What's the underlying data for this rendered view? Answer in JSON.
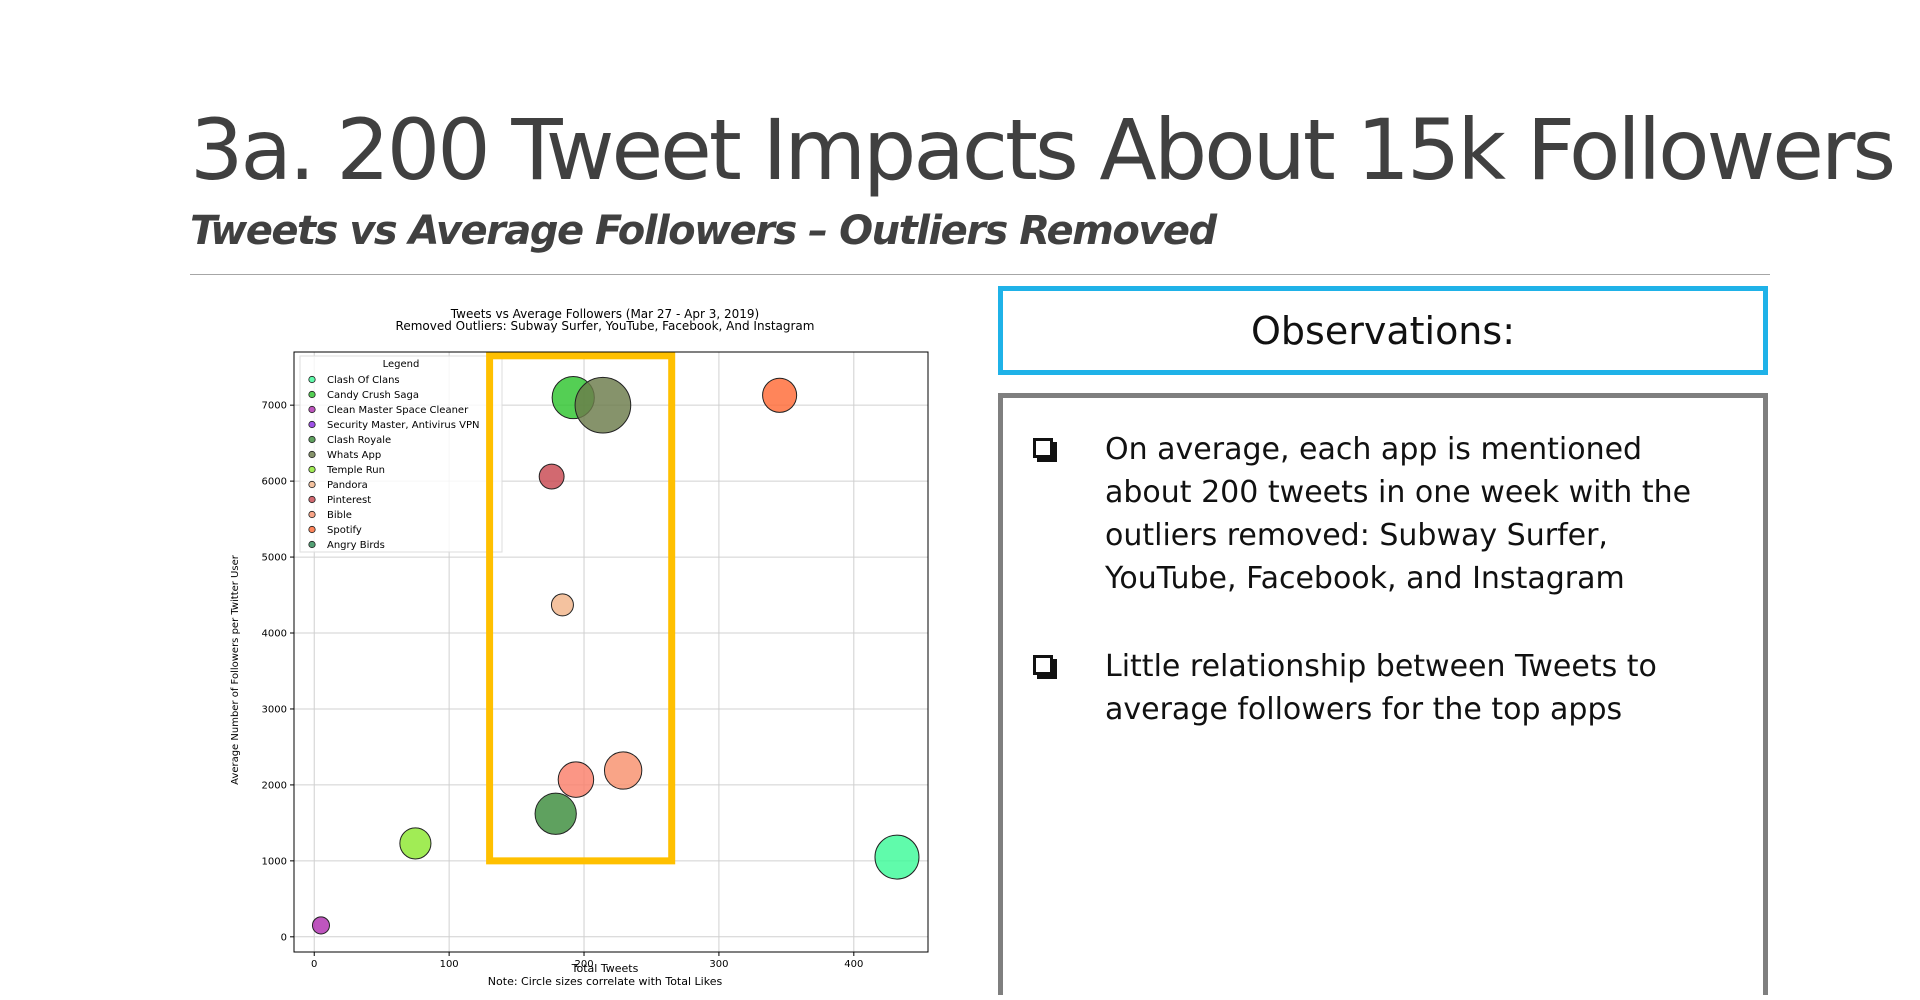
{
  "slide": {
    "title": "3a. 200 Tweet Impacts About 15k Followers",
    "subtitle": "Tweets vs Average Followers – Outliers Removed"
  },
  "observations": {
    "heading": "Observations:",
    "items": [
      "On average, each app is mentioned about 200 tweets in one week with the outliers removed: Subway Surfer, YouTube, Facebook, and Instagram",
      "Little relationship between Tweets to average followers for the top apps"
    ]
  },
  "chart_data": {
    "type": "scatter",
    "title": "Tweets vs Average Followers (Mar 27 - Apr 3, 2019)",
    "subtitle": "Removed Outliers: Subway Surfer, YouTube, Facebook, And Instagram",
    "xlabel": "Total Tweets",
    "ylabel": "Average Number of Followers per Twitter User",
    "note": "Note: Circle sizes correlate with Total Likes",
    "legend_title": "Legend",
    "legend_position": "top-left",
    "grid": true,
    "xlim": [
      -15,
      455
    ],
    "ylim": [
      -200,
      7700
    ],
    "xticks": [
      0,
      100,
      200,
      300,
      400
    ],
    "yticks": [
      0,
      1000,
      2000,
      3000,
      4000,
      5000,
      6000,
      7000
    ],
    "highlight_box": {
      "x": [
        130,
        265
      ],
      "y": [
        1000,
        7650
      ],
      "color": "#ffc000"
    },
    "series": [
      {
        "name": "Clash Of Clans",
        "color": "#3dfa98",
        "points": [
          {
            "x": 432,
            "y": 1050,
            "size": 1.0
          }
        ]
      },
      {
        "name": "Candy Crush Saga",
        "color": "#2ec42e",
        "points": [
          {
            "x": 192,
            "y": 7100,
            "size": 0.92
          }
        ]
      },
      {
        "name": "Clean Master Space Cleaner",
        "color": "#b030b0",
        "points": [
          {
            "x": 5,
            "y": 150,
            "size": 0.15
          }
        ]
      },
      {
        "name": "Security Master, Antivirus VPN",
        "color": "#8a2be2",
        "points": []
      },
      {
        "name": "Clash Royale",
        "color": "#3c8c3c",
        "points": [
          {
            "x": 179,
            "y": 1620,
            "size": 0.88
          }
        ]
      },
      {
        "name": "Whats App",
        "color": "#6b7b4a",
        "points": [
          {
            "x": 214,
            "y": 7000,
            "size": 1.6
          }
        ]
      },
      {
        "name": "Temple Run",
        "color": "#8ce830",
        "points": [
          {
            "x": 75,
            "y": 1230,
            "size": 0.5
          }
        ]
      },
      {
        "name": "Pandora",
        "color": "#f2b48a",
        "points": [
          {
            "x": 184,
            "y": 4370,
            "size": 0.25
          }
        ]
      },
      {
        "name": "Pinterest",
        "color": "#c84850",
        "points": [
          {
            "x": 176,
            "y": 6060,
            "size": 0.32
          }
        ]
      },
      {
        "name": "Bible",
        "color": "#f8906c",
        "points": [
          {
            "x": 229,
            "y": 2190,
            "size": 0.72
          }
        ]
      },
      {
        "name": "Spotify",
        "color": "#ff6a36",
        "points": [
          {
            "x": 345,
            "y": 7130,
            "size": 0.6
          }
        ]
      },
      {
        "name": "Angry Birds",
        "color": "#2e8b57",
        "points": []
      },
      {
        "name": "",
        "color": "#fa7f6a",
        "points": [
          {
            "x": 194,
            "y": 2070,
            "size": 0.65
          }
        ]
      }
    ]
  }
}
